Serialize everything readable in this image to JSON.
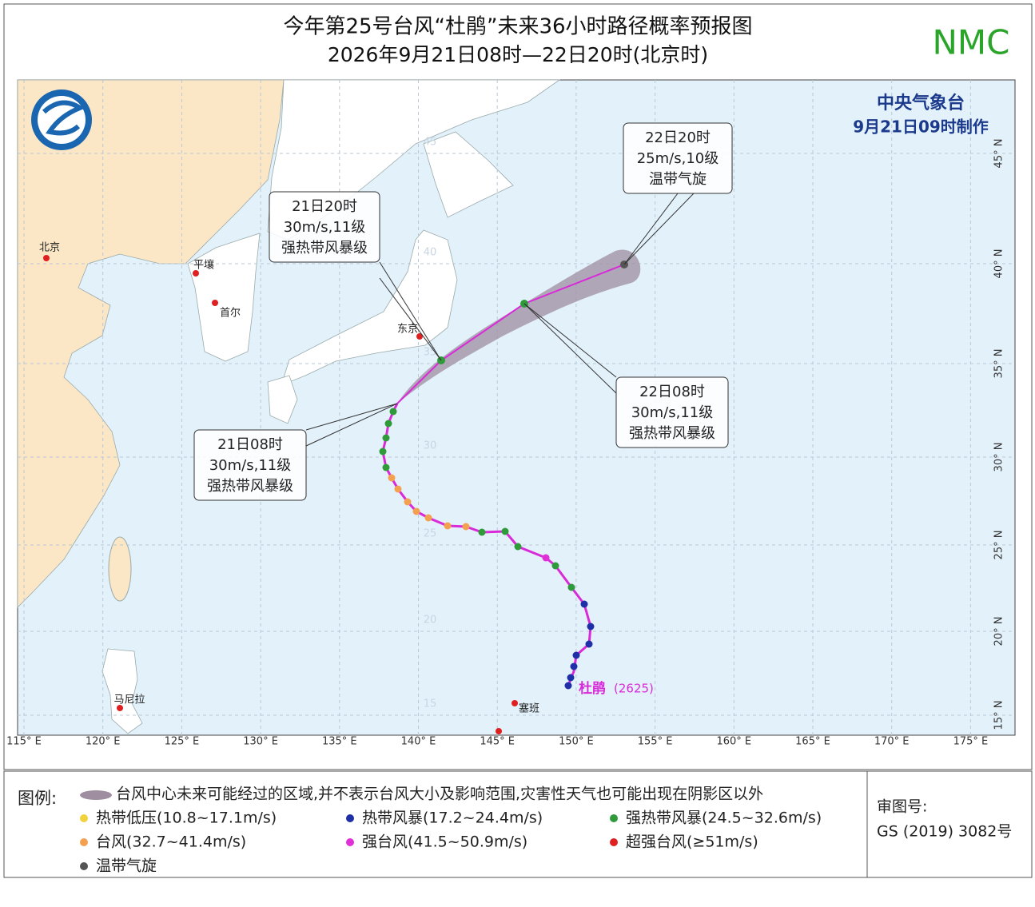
{
  "header": {
    "title": "今年第25号台风“杜鹃”未来36小时路径概率预报图",
    "subtitle": "2026年9月21日08时—22日20时(北京时)",
    "logo_text": "NMC"
  },
  "map": {
    "agency": "中央气象台",
    "issued": "9月21日09时制作",
    "cities": [
      "北京",
      "平壤",
      "首尔",
      "东京",
      "马尼拉",
      "塞班"
    ],
    "lon_labels": [
      "115° E",
      "120° E",
      "125° E",
      "130° E",
      "135° E",
      "140° E",
      "145° E",
      "150° E",
      "155° E",
      "160° E",
      "165° E",
      "170° E",
      "175° E"
    ],
    "lat_labels": [
      "45° N",
      "40° N",
      "35° N",
      "30° N",
      "25° N",
      "20° N",
      "15° N"
    ],
    "inner_lat_labels": [
      "45",
      "40",
      "35",
      "30",
      "25",
      "20",
      "15"
    ],
    "typhoon_name": "杜鹃",
    "typhoon_id": "(2625)",
    "forecasts": [
      {
        "time": "21日08时",
        "wind": "30m/s,11级",
        "level": "强热带风暴级"
      },
      {
        "time": "21日20时",
        "wind": "30m/s,11级",
        "level": "强热带风暴级"
      },
      {
        "time": "22日08时",
        "wind": "30m/s,11级",
        "level": "强热带风暴级"
      },
      {
        "time": "22日20时",
        "wind": "25m/s,10级",
        "level": "温带气旋"
      }
    ]
  },
  "legend": {
    "title": "图例:",
    "cone": "台风中心未来可能经过的区域,并不表示台风大小及影响范围,灾害性天气也可能出现在阴影区以外",
    "items": [
      {
        "label": "热带低压(10.8~17.1m/s)",
        "color": "#f2d23c"
      },
      {
        "label": "热带风暴(17.2~24.4m/s)",
        "color": "#1f2fa8"
      },
      {
        "label": "强热带风暴(24.5~32.6m/s)",
        "color": "#2f9a3a"
      },
      {
        "label": "台风(32.7~41.4m/s)",
        "color": "#f3a050"
      },
      {
        "label": "强台风(41.5~50.9m/s)",
        "color": "#e030d8"
      },
      {
        "label": "超强台风(≥51m/s)",
        "color": "#e02020"
      },
      {
        "label": "温带气旋",
        "color": "#555555"
      }
    ]
  },
  "review": {
    "label": "审图号:",
    "number": "GS (2019) 3082号"
  }
}
